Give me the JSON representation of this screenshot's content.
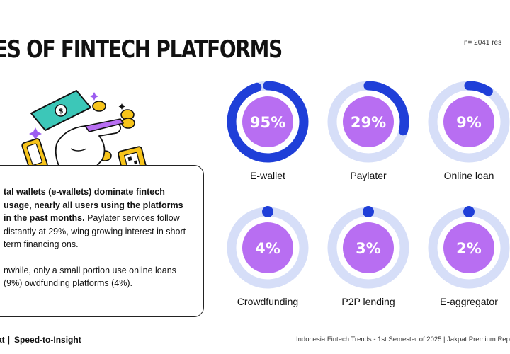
{
  "header": {
    "title": "ES OF FINTECH PLATFORMS",
    "sample_note": "n= 2041 res"
  },
  "summary": {
    "p1_bold": "tal wallets (e-wallets) dominate fintech usage, nearly all users using the platforms in the past months.",
    "p1_rest": " Paylater services follow distantly at 29%, wing growing interest in short-term financing ons.",
    "p2": "nwhile, only a small portion use online loans (9%) owdfunding platforms (4%)."
  },
  "footer": {
    "brand": "at",
    "tagline": "Speed-to-Insight",
    "source": "Indonesia Fintech Trends - 1st Semester of 2025 | Jakpat Premium Rep"
  },
  "colors": {
    "ring_track": "#d6def8",
    "ring_fill": "#1f3fd8",
    "center": "#b86ef2"
  },
  "illustration": {
    "icons": [
      "banknote-icon",
      "coin-icon",
      "smartphone-icon",
      "hand-icon",
      "qr-card-icon",
      "sparkle-icon"
    ]
  },
  "chart_data": {
    "type": "donut",
    "unit": "%",
    "categories": [
      "E-wallet",
      "Paylater",
      "Online loan",
      "Crowdfunding",
      "P2P lending",
      "E-aggregator"
    ],
    "values": [
      95,
      29,
      9,
      4,
      3,
      2
    ],
    "labels": [
      "95%",
      "29%",
      "9%",
      "4%",
      "3%",
      "2%"
    ],
    "max": 100
  }
}
